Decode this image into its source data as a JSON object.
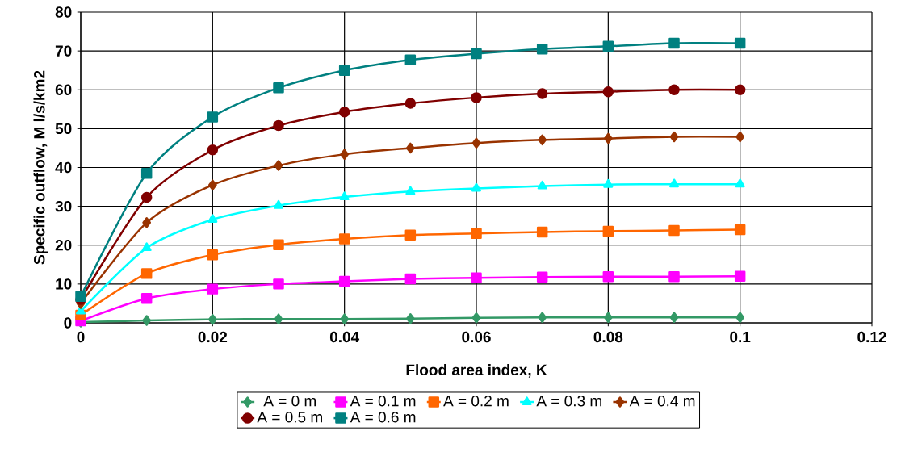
{
  "chart_data": {
    "type": "line",
    "xlabel": "Flood area index, K",
    "ylabel": "Specific outflow, M l/s/km2",
    "x": [
      0,
      0.01,
      0.02,
      0.03,
      0.04,
      0.05,
      0.06,
      0.07,
      0.08,
      0.09,
      0.1
    ],
    "xlim": [
      0,
      0.12
    ],
    "xticks": [
      0,
      0.02,
      0.04,
      0.06,
      0.08,
      0.1,
      0.12
    ],
    "ylim": [
      0,
      80
    ],
    "yticks": [
      0,
      10,
      20,
      30,
      40,
      50,
      60,
      70,
      80
    ],
    "grid": true,
    "legend": "bottom",
    "line_style": "solid",
    "series": [
      {
        "name": "A = 0 m",
        "color": "#339966",
        "marker": "diamond",
        "values": [
          0.2,
          0.6,
          0.9,
          1,
          1,
          1.1,
          1.3,
          1.4,
          1.4,
          1.4,
          1.4
        ]
      },
      {
        "name": "A = 0.1 m",
        "color": "#ff00ff",
        "marker": "square",
        "values": [
          0.5,
          6.3,
          8.7,
          10,
          10.7,
          11.3,
          11.6,
          11.8,
          11.9,
          11.9,
          12
        ]
      },
      {
        "name": "A = 0.2 m",
        "color": "#ff6600",
        "marker": "square",
        "values": [
          2,
          12.7,
          17.5,
          20.1,
          21.6,
          22.6,
          23,
          23.4,
          23.6,
          23.8,
          24
        ]
      },
      {
        "name": "A = 0.3 m",
        "color": "#00ffff",
        "marker": "triangle",
        "values": [
          3,
          19.3,
          26.6,
          30.2,
          32.4,
          33.8,
          34.6,
          35.2,
          35.6,
          35.7,
          35.7
        ]
      },
      {
        "name": "A = 0.4 m",
        "color": "#993300",
        "marker": "diamond",
        "values": [
          5,
          25.8,
          35.5,
          40.5,
          43.4,
          45,
          46.3,
          47.1,
          47.5,
          47.9,
          47.9
        ]
      },
      {
        "name": "A = 0.5 m",
        "color": "#800000",
        "marker": "circle",
        "values": [
          6,
          32.3,
          44.5,
          50.8,
          54.3,
          56.5,
          58,
          59,
          59.5,
          60,
          60
        ]
      },
      {
        "name": "A = 0.6 m",
        "color": "#008080",
        "marker": "square",
        "values": [
          6.8,
          38.5,
          53,
          60.5,
          65,
          67.7,
          69.3,
          70.5,
          71.2,
          72,
          72
        ]
      }
    ]
  }
}
